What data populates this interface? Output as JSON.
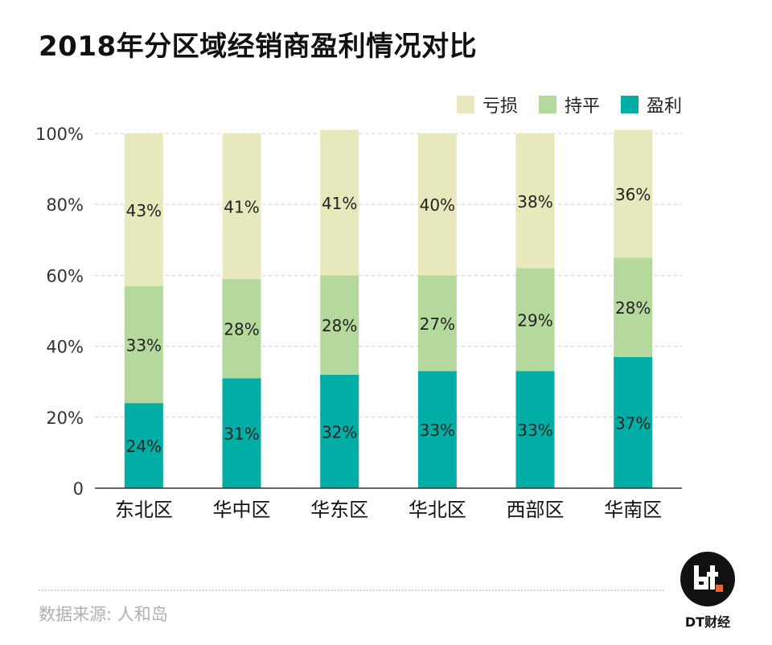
{
  "title": "2018年分区域经销商盈利情况对比",
  "legend": {
    "items": [
      {
        "label": "亏损",
        "color": "#e8e8bd"
      },
      {
        "label": "持平",
        "color": "#b5d99c"
      },
      {
        "label": "盈利",
        "color": "#00aea6"
      }
    ]
  },
  "chart_data": {
    "type": "bar",
    "stacked": true,
    "categories": [
      "东北区",
      "华中区",
      "华东区",
      "华北区",
      "西部区",
      "华南区"
    ],
    "series": [
      {
        "name": "盈利",
        "values": [
          24,
          31,
          32,
          33,
          33,
          37
        ],
        "labels": [
          "24%",
          "31%",
          "32%",
          "33%",
          "33%",
          "37%"
        ],
        "color": "#00aea6"
      },
      {
        "name": "持平",
        "values": [
          33,
          28,
          28,
          27,
          29,
          28
        ],
        "labels": [
          "33%",
          "28%",
          "28%",
          "27%",
          "29%",
          "28%"
        ],
        "color": "#b5d99c"
      },
      {
        "name": "亏损",
        "values": [
          43,
          41,
          41,
          40,
          38,
          36
        ],
        "labels": [
          "43%",
          "41%",
          "41%",
          "40%",
          "38%",
          "36%"
        ],
        "color": "#e8e8bd"
      }
    ],
    "ylim": [
      0,
      100
    ],
    "yticks": [
      0,
      20,
      40,
      60,
      80,
      100
    ],
    "ytick_labels": [
      "0",
      "20%",
      "40%",
      "60%",
      "80%",
      "100%"
    ],
    "grid": true,
    "legend_position": "top-right"
  },
  "footer": {
    "source": "数据来源: 人和岛",
    "brand": "DT财经"
  }
}
